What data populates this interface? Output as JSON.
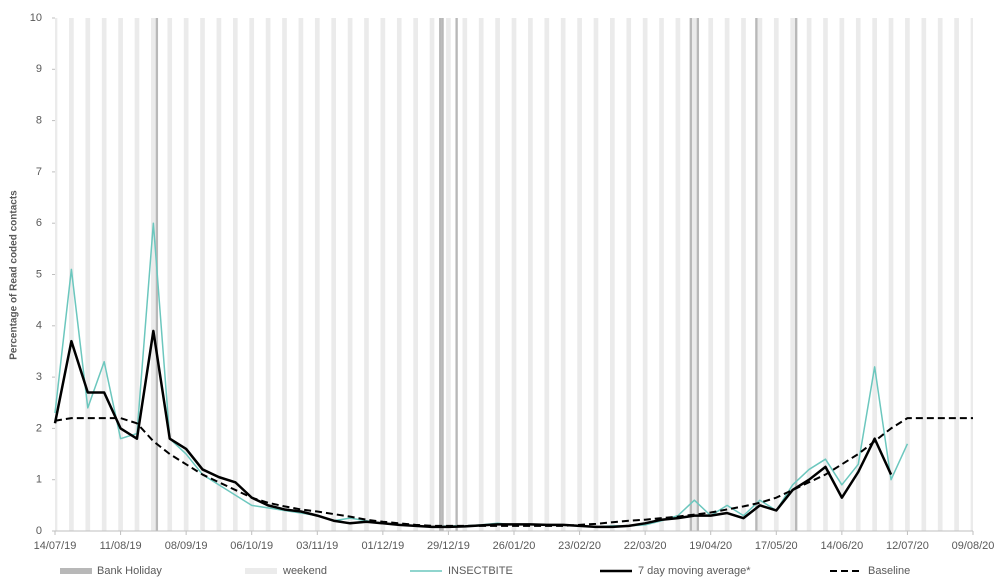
{
  "chart_data": {
    "type": "line",
    "y_label": "Percentage of Read coded contacts",
    "x": [
      "14/07/19",
      "21/07/19",
      "28/07/19",
      "04/08/19",
      "11/08/19",
      "18/08/19",
      "25/08/19",
      "01/09/19",
      "08/09/19",
      "15/09/19",
      "22/09/19",
      "29/09/19",
      "06/10/19",
      "13/10/19",
      "20/10/19",
      "27/10/19",
      "03/11/19",
      "10/11/19",
      "17/11/19",
      "24/11/19",
      "01/12/19",
      "08/12/19",
      "15/12/19",
      "22/12/19",
      "29/12/19",
      "05/01/20",
      "12/01/20",
      "19/01/20",
      "26/01/20",
      "02/02/20",
      "09/02/20",
      "16/02/20",
      "23/02/20",
      "01/03/20",
      "08/03/20",
      "15/03/20",
      "22/03/20",
      "29/03/20",
      "05/04/20",
      "12/04/20",
      "19/04/20",
      "26/04/20",
      "03/05/20",
      "10/05/20",
      "17/05/20",
      "24/05/20",
      "31/05/20",
      "07/06/20",
      "14/06/20",
      "21/06/20",
      "28/06/20",
      "05/07/20",
      "12/07/20",
      "19/07/20",
      "26/07/20",
      "02/08/20",
      "09/08/20"
    ],
    "xlim": [
      "14/07/19",
      "09/08/20"
    ],
    "xticks": [
      "14/07/19",
      "11/08/19",
      "08/09/19",
      "06/10/19",
      "03/11/19",
      "01/12/19",
      "29/12/19",
      "26/01/20",
      "23/02/20",
      "22/03/20",
      "19/04/20",
      "17/05/20",
      "14/06/20",
      "12/07/20",
      "09/08/20"
    ],
    "ylim": [
      0,
      10
    ],
    "yticks": [
      0,
      1,
      2,
      3,
      4,
      5,
      6,
      7,
      8,
      9,
      10
    ],
    "bank_holidays": {
      "name": "Bank Holiday",
      "color": "#b8b8b8",
      "dates": [
        "26/08/19",
        "25/12/19",
        "26/12/19",
        "01/01/20",
        "10/04/20",
        "13/04/20",
        "08/05/20",
        "25/05/20"
      ]
    },
    "weekends": {
      "name": "weekend",
      "color": "#ebebeb"
    },
    "series": [
      {
        "name": "INSECTBITE",
        "color": "#6cc7be",
        "width": 1.5,
        "dashed": false,
        "values": [
          2.3,
          5.1,
          2.4,
          3.3,
          1.8,
          1.9,
          6.0,
          1.8,
          1.5,
          1.1,
          0.9,
          0.7,
          0.5,
          0.45,
          0.4,
          0.35,
          0.3,
          0.2,
          0.25,
          0.2,
          0.15,
          0.12,
          0.1,
          0.08,
          0.1,
          0.1,
          0.12,
          0.15,
          0.12,
          0.13,
          0.12,
          0.12,
          0.1,
          0.08,
          0.1,
          0.1,
          0.12,
          0.2,
          0.3,
          0.6,
          0.3,
          0.5,
          0.3,
          0.6,
          0.4,
          0.9,
          1.2,
          1.4,
          0.9,
          1.3,
          3.2,
          1.0,
          1.7,
          null,
          null,
          null,
          null
        ]
      },
      {
        "name": "7 day moving average*",
        "color": "#000000",
        "width": 2.5,
        "dashed": false,
        "values": [
          2.1,
          3.7,
          2.7,
          2.7,
          2.0,
          1.8,
          3.9,
          1.8,
          1.6,
          1.2,
          1.05,
          0.95,
          0.65,
          0.5,
          0.42,
          0.38,
          0.3,
          0.2,
          0.15,
          0.18,
          0.15,
          0.12,
          0.1,
          0.08,
          0.08,
          0.09,
          0.11,
          0.13,
          0.13,
          0.13,
          0.12,
          0.12,
          0.1,
          0.08,
          0.08,
          0.1,
          0.15,
          0.22,
          0.25,
          0.3,
          0.3,
          0.35,
          0.25,
          0.5,
          0.4,
          0.8,
          1.0,
          1.25,
          0.65,
          1.15,
          1.8,
          1.1,
          null,
          null,
          null,
          null,
          null
        ]
      },
      {
        "name": "Baseline",
        "color": "#000000",
        "width": 2,
        "dashed": true,
        "values": [
          2.15,
          2.2,
          2.2,
          2.2,
          2.2,
          2.1,
          1.75,
          1.5,
          1.3,
          1.1,
          0.95,
          0.8,
          0.65,
          0.55,
          0.48,
          0.42,
          0.38,
          0.33,
          0.28,
          0.22,
          0.18,
          0.15,
          0.12,
          0.1,
          0.1,
          0.1,
          0.1,
          0.1,
          0.1,
          0.1,
          0.1,
          0.1,
          0.12,
          0.14,
          0.17,
          0.2,
          0.22,
          0.25,
          0.28,
          0.32,
          0.36,
          0.42,
          0.48,
          0.55,
          0.65,
          0.8,
          0.95,
          1.1,
          1.3,
          1.5,
          1.75,
          2.0,
          2.2,
          2.2,
          2.2,
          2.2,
          2.2
        ]
      }
    ]
  }
}
